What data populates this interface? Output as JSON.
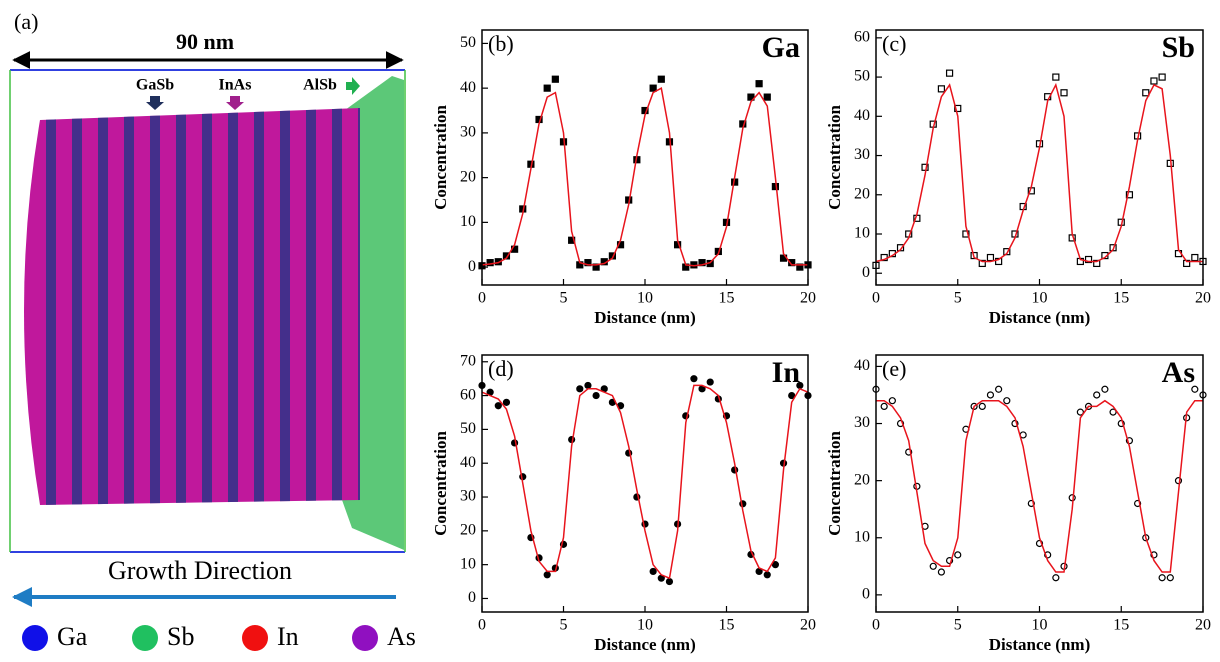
{
  "panel_a": {
    "label": "(a)",
    "width_label": "90 nm",
    "layers": [
      {
        "name": "GaSb",
        "color": "#1f2f5c"
      },
      {
        "name": "InAs",
        "color": "#a0208c"
      },
      {
        "name": "AlSb",
        "color": "#20b050"
      }
    ],
    "direction": "Growth Direction",
    "direction_color": "#1e7cc4",
    "legend": [
      {
        "name": "Ga",
        "color": "#1010e8"
      },
      {
        "name": "Sb",
        "color": "#20c060"
      },
      {
        "name": "In",
        "color": "#f01010"
      },
      {
        "name": "As",
        "color": "#9010c0"
      }
    ]
  },
  "chart_data": [
    {
      "type": "scatter",
      "label": "(b)",
      "element": "Ga",
      "xlabel": "Distance (nm)",
      "ylabel": "Concentration",
      "xlim": [
        0,
        20
      ],
      "xticks": [
        0,
        5,
        10,
        15,
        20
      ],
      "ylim": [
        -4,
        53
      ],
      "yticks": [
        0,
        10,
        20,
        30,
        40,
        50
      ],
      "x": [
        0,
        0.5,
        1,
        1.5,
        2,
        2.5,
        3,
        3.5,
        4,
        4.5,
        5,
        5.5,
        6,
        6.5,
        7,
        7.5,
        8,
        8.5,
        9,
        9.5,
        10,
        10.5,
        11,
        11.5,
        12,
        12.5,
        13,
        13.5,
        14,
        14.5,
        15,
        15.5,
        16,
        16.5,
        17,
        17.5,
        18,
        18.5,
        19,
        19.5,
        20
      ],
      "series": [
        {
          "type": "scatter",
          "marker": "square",
          "filled": true,
          "color": "#000000",
          "values": [
            0.3,
            1,
            1.2,
            2.5,
            4,
            13,
            23,
            33,
            40,
            42,
            28,
            6,
            0.5,
            1,
            0,
            1.2,
            2.5,
            5,
            15,
            24,
            35,
            40,
            42,
            28,
            5,
            0,
            0.5,
            1,
            0.8,
            3.5,
            10,
            19,
            32,
            38,
            41,
            38,
            18,
            2,
            1,
            0,
            0.5
          ]
        },
        {
          "type": "line",
          "color": "#e8141c",
          "values": [
            0.5,
            0.7,
            1,
            2,
            5,
            12,
            22,
            32,
            38,
            39,
            30,
            8,
            1,
            0.5,
            0.5,
            0.8,
            2,
            6,
            14,
            25,
            34,
            39,
            40,
            30,
            6,
            0.5,
            0.3,
            0.5,
            1,
            3,
            9,
            20,
            31,
            37,
            39,
            36,
            20,
            3,
            0.5,
            0.5,
            0.5
          ]
        }
      ]
    },
    {
      "type": "scatter",
      "label": "(c)",
      "element": "Sb",
      "xlabel": "Distance (nm)",
      "ylabel": "Concentration",
      "xlim": [
        0,
        20
      ],
      "xticks": [
        0,
        5,
        10,
        15,
        20
      ],
      "ylim": [
        -3,
        62
      ],
      "yticks": [
        0,
        10,
        20,
        30,
        40,
        50,
        60
      ],
      "x": [
        0,
        0.5,
        1,
        1.5,
        2,
        2.5,
        3,
        3.5,
        4,
        4.5,
        5,
        5.5,
        6,
        6.5,
        7,
        7.5,
        8,
        8.5,
        9,
        9.5,
        10,
        10.5,
        11,
        11.5,
        12,
        12.5,
        13,
        13.5,
        14,
        14.5,
        15,
        15.5,
        16,
        16.5,
        17,
        17.5,
        18,
        18.5,
        19,
        19.5,
        20
      ],
      "series": [
        {
          "type": "scatter",
          "marker": "square",
          "filled": false,
          "color": "#000000",
          "values": [
            2,
            4,
            5,
            6.5,
            10,
            14,
            27,
            38,
            47,
            51,
            42,
            10,
            4.5,
            2.5,
            4,
            3,
            5.5,
            10,
            17,
            21,
            33,
            45,
            50,
            46,
            9,
            3,
            3.5,
            2.5,
            4.5,
            6.5,
            13,
            20,
            35,
            46,
            49,
            50,
            28,
            5,
            2.5,
            4,
            3
          ]
        },
        {
          "type": "line",
          "color": "#e8141c",
          "values": [
            3,
            3.5,
            4.5,
            6,
            9,
            15,
            25,
            37,
            45,
            48,
            40,
            12,
            4,
            3,
            3,
            3.5,
            5,
            9,
            16,
            22,
            32,
            44,
            48,
            40,
            10,
            3.5,
            3,
            3,
            4,
            6,
            12,
            22,
            34,
            44,
            48,
            47,
            30,
            6,
            3,
            3,
            3
          ]
        }
      ]
    },
    {
      "type": "scatter",
      "label": "(d)",
      "element": "In",
      "xlabel": "Distance (nm)",
      "ylabel": "Concentration",
      "xlim": [
        0,
        20
      ],
      "xticks": [
        0,
        5,
        10,
        15,
        20
      ],
      "ylim": [
        -4,
        72
      ],
      "yticks": [
        0,
        10,
        20,
        30,
        40,
        50,
        60,
        70
      ],
      "x": [
        0,
        0.5,
        1,
        1.5,
        2,
        2.5,
        3,
        3.5,
        4,
        4.5,
        5,
        5.5,
        6,
        6.5,
        7,
        7.5,
        8,
        8.5,
        9,
        9.5,
        10,
        10.5,
        11,
        11.5,
        12,
        12.5,
        13,
        13.5,
        14,
        14.5,
        15,
        15.5,
        16,
        16.5,
        17,
        17.5,
        18,
        18.5,
        19,
        19.5,
        20
      ],
      "series": [
        {
          "type": "scatter",
          "marker": "circle",
          "filled": true,
          "color": "#000000",
          "values": [
            63,
            61,
            57,
            58,
            46,
            36,
            18,
            12,
            7,
            9,
            16,
            47,
            62,
            63,
            60,
            62,
            58,
            57,
            43,
            30,
            22,
            8,
            6,
            5,
            22,
            54,
            65,
            62,
            64,
            59,
            54,
            38,
            28,
            13,
            8,
            7,
            10,
            40,
            60,
            63,
            60
          ]
        },
        {
          "type": "line",
          "color": "#e8141c",
          "values": [
            61,
            60,
            59,
            56,
            48,
            34,
            20,
            11,
            8,
            8,
            18,
            45,
            60,
            62,
            62,
            61,
            60,
            55,
            45,
            32,
            20,
            10,
            7,
            6,
            20,
            52,
            63,
            63,
            62,
            60,
            52,
            40,
            26,
            14,
            9,
            8,
            12,
            38,
            58,
            62,
            61
          ]
        }
      ]
    },
    {
      "type": "scatter",
      "label": "(e)",
      "element": "As",
      "xlabel": "Distance (nm)",
      "ylabel": "Concentration",
      "xlim": [
        0,
        20
      ],
      "xticks": [
        0,
        5,
        10,
        15,
        20
      ],
      "ylim": [
        -3,
        42
      ],
      "yticks": [
        0,
        10,
        20,
        30,
        40
      ],
      "x": [
        0,
        0.5,
        1,
        1.5,
        2,
        2.5,
        3,
        3.5,
        4,
        4.5,
        5,
        5.5,
        6,
        6.5,
        7,
        7.5,
        8,
        8.5,
        9,
        9.5,
        10,
        10.5,
        11,
        11.5,
        12,
        12.5,
        13,
        13.5,
        14,
        14.5,
        15,
        15.5,
        16,
        16.5,
        17,
        17.5,
        18,
        18.5,
        19,
        19.5,
        20
      ],
      "series": [
        {
          "type": "scatter",
          "marker": "circle",
          "filled": false,
          "color": "#000000",
          "values": [
            36,
            33,
            34,
            30,
            25,
            19,
            12,
            5,
            4,
            6,
            7,
            29,
            33,
            33,
            35,
            36,
            34,
            30,
            28,
            16,
            9,
            7,
            3,
            5,
            17,
            32,
            33,
            35,
            36,
            32,
            30,
            27,
            16,
            10,
            7,
            3,
            3,
            20,
            31,
            36,
            35
          ]
        },
        {
          "type": "line",
          "color": "#e8141c",
          "values": [
            34,
            34,
            33,
            31,
            27,
            18,
            9,
            6,
            5,
            5,
            10,
            27,
            33,
            34,
            34,
            34,
            33,
            31,
            26,
            18,
            10,
            6,
            4,
            4,
            15,
            31,
            33,
            33,
            34,
            33,
            31,
            26,
            18,
            10,
            6,
            4,
            4,
            18,
            32,
            34,
            34
          ]
        }
      ]
    }
  ]
}
